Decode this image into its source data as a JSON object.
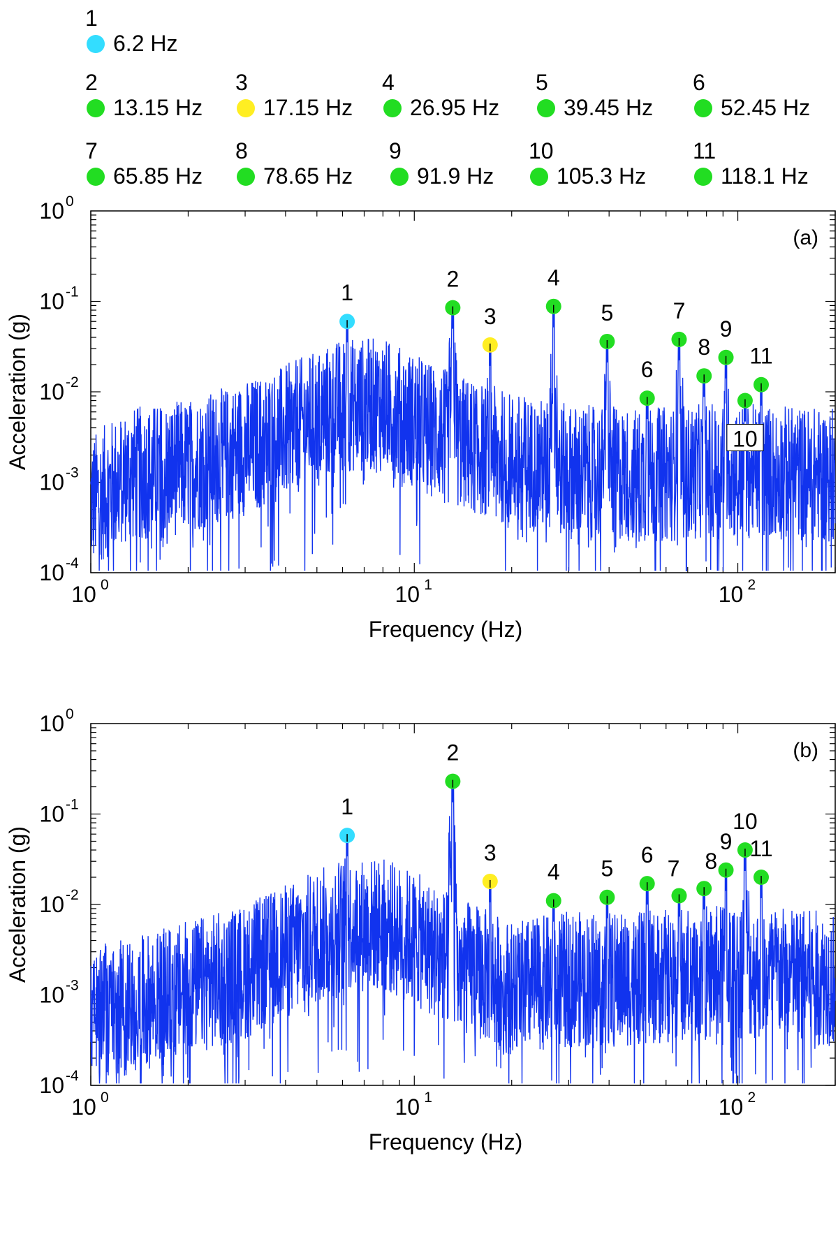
{
  "legend": [
    {
      "num": "1",
      "value": "6.2 Hz",
      "color": "#33ddff"
    },
    {
      "num": "2",
      "value": "13.15 Hz",
      "color": "#22dd22"
    },
    {
      "num": "3",
      "value": "17.15 Hz",
      "color": "#ffee22"
    },
    {
      "num": "4",
      "value": "26.95 Hz",
      "color": "#22dd22"
    },
    {
      "num": "5",
      "value": "39.45 Hz",
      "color": "#22dd22"
    },
    {
      "num": "6",
      "value": "52.45 Hz",
      "color": "#22dd22"
    },
    {
      "num": "7",
      "value": "65.85 Hz",
      "color": "#22dd22"
    },
    {
      "num": "8",
      "value": "78.65 Hz",
      "color": "#22dd22"
    },
    {
      "num": "9",
      "value": "91.9 Hz",
      "color": "#22dd22"
    },
    {
      "num": "10",
      "value": "105.3 Hz",
      "color": "#22dd22"
    },
    {
      "num": "11",
      "value": "118.1 Hz",
      "color": "#22dd22"
    }
  ],
  "colors": {
    "trace": "#1133ee",
    "mode1": "#33ddff",
    "mode3": "#ffee22",
    "other": "#22dd22"
  },
  "chart_data": [
    {
      "type": "line",
      "panel_label": "(a)",
      "xlabel": "Frequency (Hz)",
      "ylabel": "Acceleration (g)",
      "xscale": "log",
      "yscale": "log",
      "xlim": [
        1,
        200
      ],
      "ylim": [
        0.0001,
        1
      ],
      "x_ticks": [
        {
          "base": "10",
          "exp": "0",
          "value": 1
        },
        {
          "base": "10",
          "exp": "1",
          "value": 10
        },
        {
          "base": "10",
          "exp": "2",
          "value": 100
        }
      ],
      "y_ticks": [
        {
          "base": "10",
          "exp": "0",
          "value": 1
        },
        {
          "base": "10",
          "exp": "-1",
          "value": 0.1
        },
        {
          "base": "10",
          "exp": "-2",
          "value": 0.01
        },
        {
          "base": "10",
          "exp": "-3",
          "value": 0.001
        },
        {
          "base": "10",
          "exp": "-4",
          "value": 0.0001
        }
      ],
      "peaks": [
        {
          "label": "1",
          "f": 6.2,
          "a": 0.06
        },
        {
          "label": "2",
          "f": 13.15,
          "a": 0.085
        },
        {
          "label": "3",
          "f": 17.15,
          "a": 0.033
        },
        {
          "label": "4",
          "f": 26.95,
          "a": 0.088
        },
        {
          "label": "5",
          "f": 39.45,
          "a": 0.036
        },
        {
          "label": "6",
          "f": 52.45,
          "a": 0.0085
        },
        {
          "label": "7",
          "f": 65.85,
          "a": 0.038
        },
        {
          "label": "8",
          "f": 78.65,
          "a": 0.015
        },
        {
          "label": "9",
          "f": 91.9,
          "a": 0.024
        },
        {
          "label": "10",
          "f": 105.3,
          "a": 0.008
        },
        {
          "label": "11",
          "f": 118.1,
          "a": 0.012
        }
      ],
      "envelope": [
        {
          "f": 1.0,
          "a": 0.001
        },
        {
          "f": 1.3,
          "a": 0.002
        },
        {
          "f": 2.0,
          "a": 0.0025
        },
        {
          "f": 3.0,
          "a": 0.004
        },
        {
          "f": 4.0,
          "a": 0.006
        },
        {
          "f": 6.0,
          "a": 0.012
        },
        {
          "f": 8.0,
          "a": 0.012
        },
        {
          "f": 10.0,
          "a": 0.008
        },
        {
          "f": 13.0,
          "a": 0.005
        },
        {
          "f": 20.0,
          "a": 0.003
        },
        {
          "f": 30.0,
          "a": 0.0022
        },
        {
          "f": 50.0,
          "a": 0.002
        },
        {
          "f": 80.0,
          "a": 0.0022
        },
        {
          "f": 120.0,
          "a": 0.0022
        },
        {
          "f": 200.0,
          "a": 0.002
        }
      ]
    },
    {
      "type": "line",
      "panel_label": "(b)",
      "xlabel": "Frequency (Hz)",
      "ylabel": "Acceleration (g)",
      "xscale": "log",
      "yscale": "log",
      "xlim": [
        1,
        200
      ],
      "ylim": [
        0.0001,
        1
      ],
      "x_ticks": [
        {
          "base": "10",
          "exp": "0",
          "value": 1
        },
        {
          "base": "10",
          "exp": "1",
          "value": 10
        },
        {
          "base": "10",
          "exp": "2",
          "value": 100
        }
      ],
      "y_ticks": [
        {
          "base": "10",
          "exp": "0",
          "value": 1
        },
        {
          "base": "10",
          "exp": "-1",
          "value": 0.1
        },
        {
          "base": "10",
          "exp": "-2",
          "value": 0.01
        },
        {
          "base": "10",
          "exp": "-3",
          "value": 0.001
        },
        {
          "base": "10",
          "exp": "-4",
          "value": 0.0001
        }
      ],
      "peaks": [
        {
          "label": "1",
          "f": 6.2,
          "a": 0.058
        },
        {
          "label": "2",
          "f": 13.15,
          "a": 0.23
        },
        {
          "label": "3",
          "f": 17.15,
          "a": 0.018
        },
        {
          "label": "4",
          "f": 26.95,
          "a": 0.011
        },
        {
          "label": "5",
          "f": 39.45,
          "a": 0.012
        },
        {
          "label": "6",
          "f": 52.45,
          "a": 0.017
        },
        {
          "label": "7",
          "f": 65.85,
          "a": 0.0125
        },
        {
          "label": "8",
          "f": 78.65,
          "a": 0.015
        },
        {
          "label": "9",
          "f": 91.9,
          "a": 0.024
        },
        {
          "label": "10",
          "f": 105.3,
          "a": 0.04
        },
        {
          "label": "11",
          "f": 118.1,
          "a": 0.02
        }
      ],
      "envelope": [
        {
          "f": 1.0,
          "a": 0.0012
        },
        {
          "f": 1.3,
          "a": 0.0012
        },
        {
          "f": 2.0,
          "a": 0.002
        },
        {
          "f": 3.0,
          "a": 0.003
        },
        {
          "f": 4.0,
          "a": 0.005
        },
        {
          "f": 6.0,
          "a": 0.01
        },
        {
          "f": 8.0,
          "a": 0.01
        },
        {
          "f": 10.0,
          "a": 0.007
        },
        {
          "f": 13.0,
          "a": 0.004
        },
        {
          "f": 20.0,
          "a": 0.002
        },
        {
          "f": 30.0,
          "a": 0.0025
        },
        {
          "f": 50.0,
          "a": 0.0025
        },
        {
          "f": 80.0,
          "a": 0.003
        },
        {
          "f": 120.0,
          "a": 0.003
        },
        {
          "f": 200.0,
          "a": 0.0025
        }
      ]
    }
  ]
}
